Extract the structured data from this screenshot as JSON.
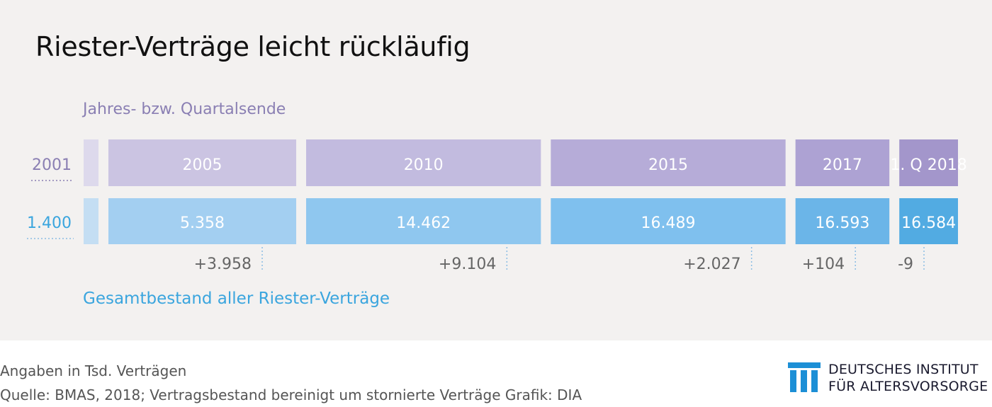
{
  "title": "Riester-Verträge leicht rückläufig",
  "top_label": "Jahres- bzw. Quartalsende",
  "bottom_label": "Gesamtbestand aller Riester-Verträge",
  "footer": {
    "note": "Angaben in Tsd. Verträgen",
    "source": "Quelle: BMAS, 2018; Vertragsbestand bereinigt um stornierte Verträge  Grafik: DIA"
  },
  "logo": {
    "line1": "DEUTSCHES INSTITUT",
    "line2": "FÜR ALTERSVORSORGE",
    "color": "#1c8fd6"
  },
  "chart_data": {
    "type": "table",
    "periods": [
      "2001",
      "2005",
      "2010",
      "2015",
      "2017",
      "1. Q 2018"
    ],
    "period_values": [
      2001,
      2005,
      2010,
      2015,
      2017,
      2018.25
    ],
    "totals": [
      "1.400",
      "5.358",
      "14.462",
      "16.489",
      "16.593",
      "16.584"
    ],
    "total_values": [
      1400,
      5358,
      14462,
      16489,
      16593,
      16584
    ],
    "changes": [
      "",
      "+3.958",
      "+9.104",
      "+2.027",
      "+104",
      "-9"
    ],
    "unit": "Tsd. Verträge",
    "colors": {
      "period_boxes": [
        "#ddd9ec",
        "#cbc4e2",
        "#c2bbdf",
        "#b6acd8",
        "#ada2d3",
        "#a396cb"
      ],
      "total_boxes": [
        "#c4def3",
        "#a3cff1",
        "#8fc7ef",
        "#7fc0ee",
        "#6bb5e8",
        "#52abe2"
      ],
      "first_label_period": "#8a7fb3",
      "first_label_total": "#3aa5de",
      "change_text": "#666666",
      "dotted_line": "#8bbde4"
    }
  }
}
